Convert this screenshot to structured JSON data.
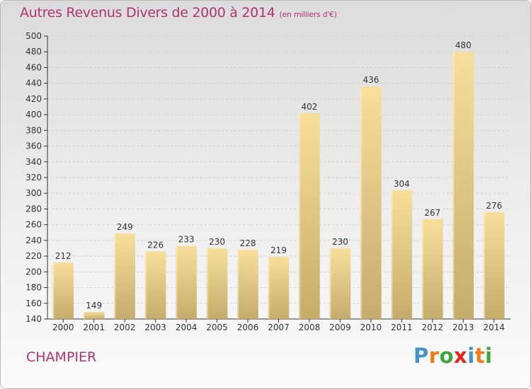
{
  "header": {
    "title": "Autres Revenus Divers de 2000 à 2014",
    "unit": "(en milliers d'€)"
  },
  "footer": {
    "city": "CHAMPIER",
    "logo": [
      "P",
      "r",
      "o",
      "x",
      "i",
      "t",
      "i"
    ]
  },
  "colors": {
    "title": "#b1356c",
    "bar_top": "#f7df9b",
    "bar_bottom": "#c5ac6b",
    "logo": [
      "#4a90c8",
      "#f07d1a",
      "#3da33a",
      "#e32421",
      "#4a90c8",
      "#f07d1a",
      "#3da33a"
    ]
  },
  "chart_data": {
    "type": "bar",
    "title": "Autres Revenus Divers de 2000 à 2014",
    "subtitle": "(en milliers d'€)",
    "categories": [
      "2000",
      "2001",
      "2002",
      "2003",
      "2004",
      "2005",
      "2006",
      "2007",
      "2008",
      "2009",
      "2010",
      "2011",
      "2012",
      "2013",
      "2014"
    ],
    "values": [
      212,
      149,
      249,
      226,
      233,
      230,
      228,
      219,
      402,
      230,
      436,
      304,
      267,
      480,
      276
    ],
    "ylim": [
      140,
      500
    ],
    "yticks": [
      140,
      160,
      180,
      200,
      220,
      240,
      260,
      280,
      300,
      320,
      340,
      360,
      380,
      400,
      420,
      440,
      460,
      480,
      500
    ],
    "grid": true,
    "legend": "none"
  }
}
